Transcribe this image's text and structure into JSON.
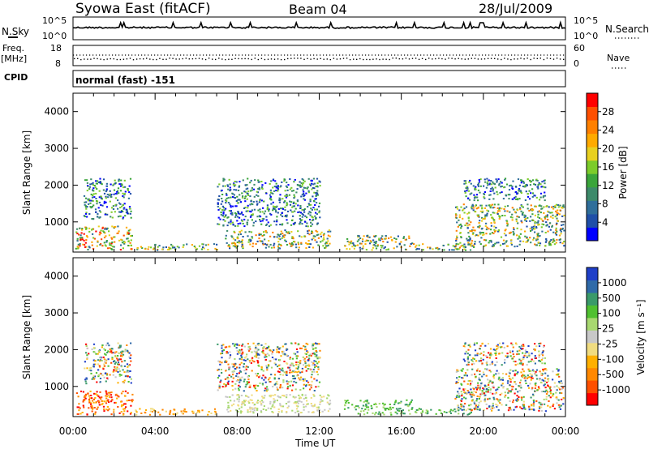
{
  "header": {
    "station": "Syowa East (fitACF)",
    "beam": "Beam 04",
    "date": "28/Jul/2009"
  },
  "summary_panels": {
    "nsky_label": "N.Sky",
    "nsky_ticks": [
      "10^5",
      "10^0"
    ],
    "nsearch_label": "N.Search",
    "nsearch_ticks": [
      "10^5",
      "10^0"
    ],
    "freq_label_1": "Freq.",
    "freq_label_2": "[MHz]",
    "freq_ticks": [
      "18",
      "8"
    ],
    "nave_label": "Nave",
    "nave_ticks": [
      "60",
      "0"
    ],
    "cpid_label": "CPID",
    "cpid_text": "normal (fast) -151"
  },
  "time_axis": {
    "ticks": [
      "00:00",
      "04:00",
      "08:00",
      "12:00",
      "16:00",
      "20:00",
      "00:00"
    ],
    "label": "Time UT"
  },
  "chart_data": [
    {
      "type": "heatmap",
      "name": "power-panel",
      "ylabel": "Slant Range [km]",
      "yticks": [
        "4000",
        "3000",
        "2000",
        "1000"
      ],
      "ylim": [
        180,
        4500
      ],
      "x_range_hours": [
        0,
        24
      ],
      "colorbar": {
        "label": "Power [dB]",
        "ticks": [
          "28",
          "24",
          "20",
          "16",
          "12",
          "8",
          "4"
        ],
        "colors": [
          "#0000ff",
          "#1f4fa8",
          "#2f6e9a",
          "#3d8a6a",
          "#3aa53a",
          "#7ccc2a",
          "#e8d020",
          "#ffaa00",
          "#ff8000",
          "#ff5000",
          "#ff0000"
        ]
      },
      "echo_regions": [
        {
          "t0": 0.1,
          "t1": 2.9,
          "r0": 250,
          "r1": 900,
          "level": "high"
        },
        {
          "t0": 0.5,
          "t1": 2.8,
          "r0": 1100,
          "r1": 2200,
          "level": "low"
        },
        {
          "t0": 3.0,
          "t1": 7.0,
          "r0": 250,
          "r1": 420,
          "level": "mid"
        },
        {
          "t0": 7.4,
          "t1": 12.5,
          "r0": 300,
          "r1": 800,
          "level": "mid"
        },
        {
          "t0": 7.0,
          "t1": 12.0,
          "r0": 900,
          "r1": 2200,
          "level": "low"
        },
        {
          "t0": 13.2,
          "t1": 16.5,
          "r0": 250,
          "r1": 650,
          "level": "mid"
        },
        {
          "t0": 16.5,
          "t1": 19.5,
          "r0": 250,
          "r1": 420,
          "level": "mid"
        },
        {
          "t0": 18.6,
          "t1": 23.9,
          "r0": 350,
          "r1": 1500,
          "level": "mid"
        },
        {
          "t0": 19.0,
          "t1": 23.0,
          "r0": 1600,
          "r1": 2200,
          "level": "low"
        }
      ]
    },
    {
      "type": "heatmap",
      "name": "velocity-panel",
      "ylabel": "Slant Range [km]",
      "yticks": [
        "4000",
        "3000",
        "2000",
        "1000"
      ],
      "ylim": [
        180,
        4500
      ],
      "x_range_hours": [
        0,
        24
      ],
      "colorbar": {
        "label": "Velocity [m s⁻¹]",
        "ticks": [
          "1000",
          "500",
          "100",
          "25",
          "-25",
          "-100",
          "-500",
          "-1000"
        ],
        "colors": [
          "#ff0000",
          "#ff5000",
          "#ff8800",
          "#ffb000",
          "#f0dc80",
          "#c8c8c8",
          "#a8d870",
          "#50c030",
          "#3a9a6a",
          "#2f6aa8",
          "#1f3fc8"
        ]
      },
      "echo_regions": [
        {
          "t0": 0.1,
          "t1": 2.9,
          "r0": 250,
          "r1": 900,
          "level": "neg-strong"
        },
        {
          "t0": 0.5,
          "t1": 2.8,
          "r0": 1100,
          "r1": 2200,
          "level": "mixed"
        },
        {
          "t0": 3.0,
          "t1": 7.0,
          "r0": 250,
          "r1": 420,
          "level": "neg-weak"
        },
        {
          "t0": 7.4,
          "t1": 12.5,
          "r0": 300,
          "r1": 800,
          "level": "near-zero"
        },
        {
          "t0": 7.0,
          "t1": 12.0,
          "r0": 900,
          "r1": 2200,
          "level": "mixed"
        },
        {
          "t0": 13.2,
          "t1": 16.5,
          "r0": 250,
          "r1": 650,
          "level": "pos-weak"
        },
        {
          "t0": 16.5,
          "t1": 19.5,
          "r0": 250,
          "r1": 420,
          "level": "pos-weak"
        },
        {
          "t0": 18.6,
          "t1": 23.9,
          "r0": 350,
          "r1": 1500,
          "level": "mixed"
        },
        {
          "t0": 19.0,
          "t1": 23.0,
          "r0": 1600,
          "r1": 2200,
          "level": "mixed"
        }
      ]
    }
  ]
}
